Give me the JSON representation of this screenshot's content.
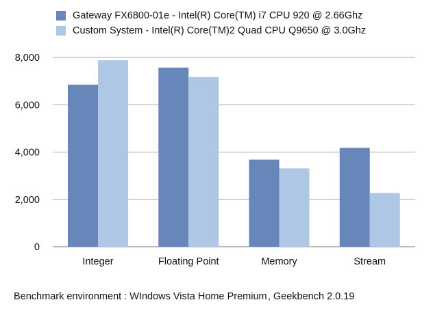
{
  "chart_data": {
    "type": "bar",
    "categories": [
      "Integer",
      "Floating Point",
      "Memory",
      "Stream"
    ],
    "series": [
      {
        "name": "Gateway FX6800-01e - Intel(R) Core(TM) i7 CPU 920 @ 2.66Ghz",
        "color": "#6786b9",
        "values": [
          6850,
          7570,
          3680,
          4180
        ]
      },
      {
        "name": "Custom System - Intel(R) Core(TM)2 Quad CPU Q9650 @ 3.0Ghz",
        "color": "#adc7e4",
        "values": [
          7880,
          7170,
          3310,
          2270
        ]
      }
    ],
    "yticks": [
      "0",
      "2,000",
      "4,000",
      "6,000",
      "8,000"
    ],
    "ylim": [
      0,
      8000
    ],
    "grid": true,
    "legend": "top"
  },
  "footnote": "Benchmark environment : WIndows Vista Home Premium , Geekbench 2.0.19"
}
